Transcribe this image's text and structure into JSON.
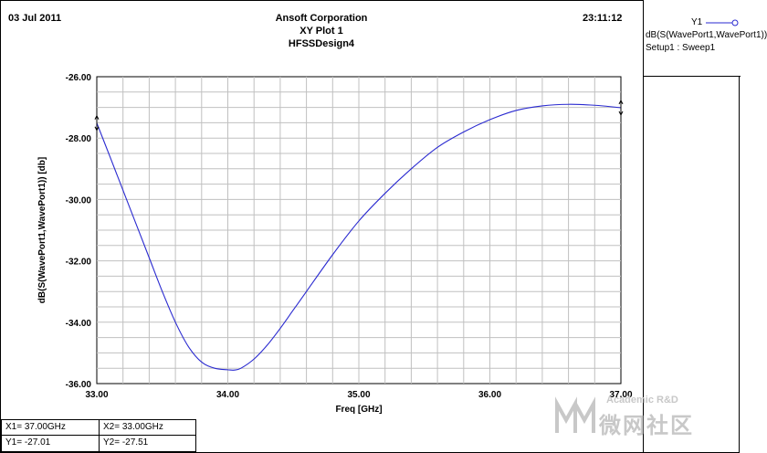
{
  "header": {
    "date": "03 Jul 2011",
    "company": "Ansoft Corporation",
    "plot_name": "XY Plot 1",
    "design": "HFSSDesign4",
    "time": "23:11:12"
  },
  "legend": {
    "trace_id": "Y1",
    "trace_expr": "dB(S(WavePort1,WavePort1))",
    "setup": "Setup1 : Sweep1"
  },
  "markers": {
    "x1": "X1= 37.00GHz",
    "x2": "X2= 33.00GHz",
    "y1": "Y1= -27.01",
    "y2": "Y2= -27.51"
  },
  "watermark": {
    "line1": "Academic R&D",
    "line2": "微网社区"
  },
  "colors": {
    "trace": "#2a2ad0",
    "grid": "#c0c0c0",
    "plot_bg": "#ffffff"
  },
  "chart_data": {
    "type": "line",
    "xlabel": "Freq [GHz]",
    "ylabel": "dB(S(WavePort1,WavePort1)) [db]",
    "xlim": [
      33.0,
      37.0
    ],
    "ylim": [
      -36.0,
      -26.0
    ],
    "x_ticks": [
      "33.00",
      "34.00",
      "35.00",
      "36.00",
      "37.00"
    ],
    "y_ticks": [
      "-26.00",
      "-28.00",
      "-30.00",
      "-32.00",
      "-34.00",
      "-36.00"
    ],
    "grid": true,
    "series": [
      {
        "name": "Y1",
        "x": [
          33.0,
          33.1,
          33.2,
          33.3,
          33.4,
          33.5,
          33.6,
          33.7,
          33.8,
          33.9,
          34.0,
          34.05,
          34.1,
          34.2,
          34.3,
          34.4,
          34.5,
          34.6,
          34.8,
          35.0,
          35.2,
          35.4,
          35.6,
          35.8,
          36.0,
          36.2,
          36.4,
          36.6,
          36.8,
          37.0
        ],
        "y": [
          -27.51,
          -28.6,
          -29.7,
          -30.8,
          -31.9,
          -33.0,
          -34.0,
          -34.8,
          -35.3,
          -35.5,
          -35.55,
          -35.56,
          -35.5,
          -35.2,
          -34.75,
          -34.2,
          -33.6,
          -33.0,
          -31.8,
          -30.7,
          -29.8,
          -29.0,
          -28.3,
          -27.8,
          -27.4,
          -27.1,
          -26.95,
          -26.9,
          -26.93,
          -27.01
        ]
      }
    ]
  }
}
